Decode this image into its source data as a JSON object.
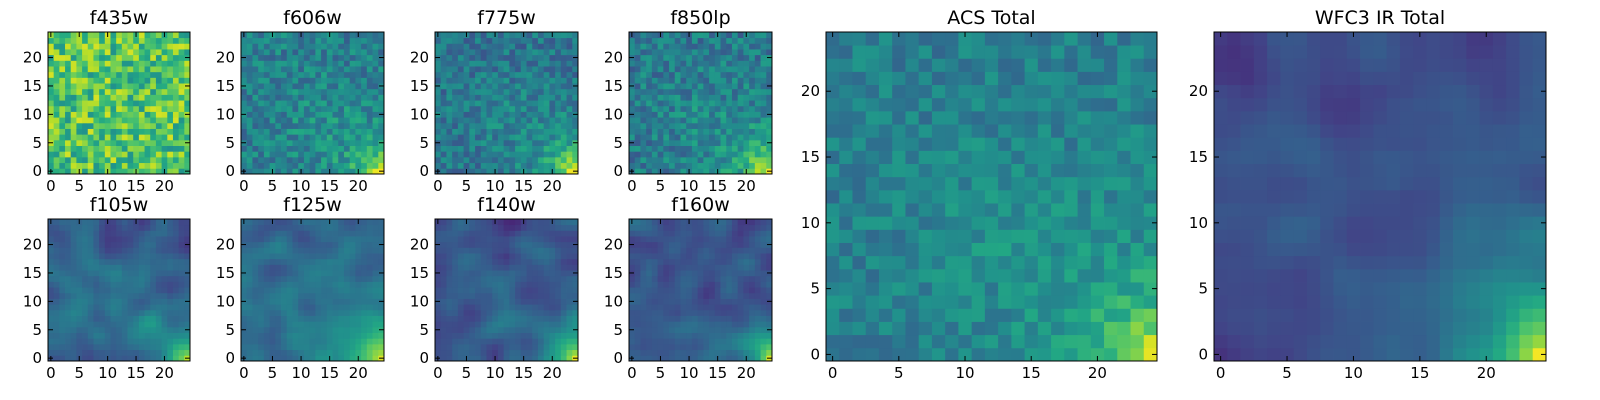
{
  "figure": {
    "colormap": "viridis",
    "frame_color": "#000000"
  },
  "chart_data": [
    {
      "type": "heatmap",
      "title": "f435w",
      "grid": false,
      "xlim": [
        -0.5,
        24.5
      ],
      "ylim": [
        -0.5,
        24.5
      ],
      "xticks": [
        "0",
        "5",
        "10",
        "15",
        "20"
      ],
      "yticks": [
        "0",
        "5",
        "10",
        "15",
        "20"
      ],
      "size": 25,
      "pattern": "noise",
      "base": 0.72,
      "noise": 0.22,
      "corner": 0.0,
      "seed": 11
    },
    {
      "type": "heatmap",
      "title": "f606w",
      "grid": false,
      "xlim": [
        -0.5,
        24.5
      ],
      "ylim": [
        -0.5,
        24.5
      ],
      "xticks": [
        "0",
        "5",
        "10",
        "15",
        "20"
      ],
      "yticks": [
        "0",
        "5",
        "10",
        "15",
        "20"
      ],
      "size": 25,
      "pattern": "corner",
      "base": 0.42,
      "noise": 0.14,
      "corner": 0.55,
      "seed": 23
    },
    {
      "type": "heatmap",
      "title": "f775w",
      "grid": false,
      "xlim": [
        -0.5,
        24.5
      ],
      "ylim": [
        -0.5,
        24.5
      ],
      "xticks": [
        "0",
        "5",
        "10",
        "15",
        "20"
      ],
      "yticks": [
        "0",
        "5",
        "10",
        "15",
        "20"
      ],
      "size": 25,
      "pattern": "corner",
      "base": 0.38,
      "noise": 0.13,
      "corner": 0.62,
      "seed": 37
    },
    {
      "type": "heatmap",
      "title": "f850lp",
      "grid": false,
      "xlim": [
        -0.5,
        24.5
      ],
      "ylim": [
        -0.5,
        24.5
      ],
      "xticks": [
        "0",
        "5",
        "10",
        "15",
        "20"
      ],
      "yticks": [
        "0",
        "5",
        "10",
        "15",
        "20"
      ],
      "size": 25,
      "pattern": "corner",
      "base": 0.4,
      "noise": 0.14,
      "corner": 0.62,
      "seed": 41
    },
    {
      "type": "heatmap",
      "title": "f105w",
      "grid": false,
      "xlim": [
        -0.5,
        24.5
      ],
      "ylim": [
        -0.5,
        24.5
      ],
      "xticks": [
        "0",
        "5",
        "10",
        "15",
        "20"
      ],
      "yticks": [
        "0",
        "5",
        "10",
        "15",
        "20"
      ],
      "size": 25,
      "pattern": "smooth",
      "base": 0.3,
      "noise": 0.07,
      "corner": 0.7,
      "seed": 53
    },
    {
      "type": "heatmap",
      "title": "f125w",
      "grid": false,
      "xlim": [
        -0.5,
        24.5
      ],
      "ylim": [
        -0.5,
        24.5
      ],
      "xticks": [
        "0",
        "5",
        "10",
        "15",
        "20"
      ],
      "yticks": [
        "0",
        "5",
        "10",
        "15",
        "20"
      ],
      "size": 25,
      "pattern": "smooth",
      "base": 0.33,
      "noise": 0.07,
      "corner": 0.66,
      "seed": 61
    },
    {
      "type": "heatmap",
      "title": "f140w",
      "grid": false,
      "xlim": [
        -0.5,
        24.5
      ],
      "ylim": [
        -0.5,
        24.5
      ],
      "xticks": [
        "0",
        "5",
        "10",
        "15",
        "20"
      ],
      "yticks": [
        "0",
        "5",
        "10",
        "15",
        "20"
      ],
      "size": 25,
      "pattern": "smooth",
      "base": 0.24,
      "noise": 0.07,
      "corner": 0.76,
      "seed": 71
    },
    {
      "type": "heatmap",
      "title": "f160w",
      "grid": false,
      "xlim": [
        -0.5,
        24.5
      ],
      "ylim": [
        -0.5,
        24.5
      ],
      "xticks": [
        "0",
        "5",
        "10",
        "15",
        "20"
      ],
      "yticks": [
        "0",
        "5",
        "10",
        "15",
        "20"
      ],
      "size": 25,
      "pattern": "smooth",
      "base": 0.24,
      "noise": 0.07,
      "corner": 0.76,
      "seed": 83
    },
    {
      "type": "heatmap",
      "title": "ACS Total",
      "grid": false,
      "xlim": [
        -0.5,
        24.5
      ],
      "ylim": [
        -0.5,
        24.5
      ],
      "xticks": [
        "0",
        "5",
        "10",
        "15",
        "20"
      ],
      "yticks": [
        "0",
        "5",
        "10",
        "15",
        "20"
      ],
      "size": 25,
      "pattern": "corner",
      "base": 0.42,
      "noise": 0.1,
      "corner": 0.56,
      "seed": 97
    },
    {
      "type": "heatmap",
      "title": "WFC3 IR Total",
      "grid": false,
      "xlim": [
        -0.5,
        24.5
      ],
      "ylim": [
        -0.5,
        24.5
      ],
      "xticks": [
        "0",
        "5",
        "10",
        "15",
        "20"
      ],
      "yticks": [
        "0",
        "5",
        "10",
        "15",
        "20"
      ],
      "size": 25,
      "pattern": "smooth",
      "base": 0.22,
      "noise": 0.05,
      "corner": 0.78,
      "seed": 109
    }
  ]
}
